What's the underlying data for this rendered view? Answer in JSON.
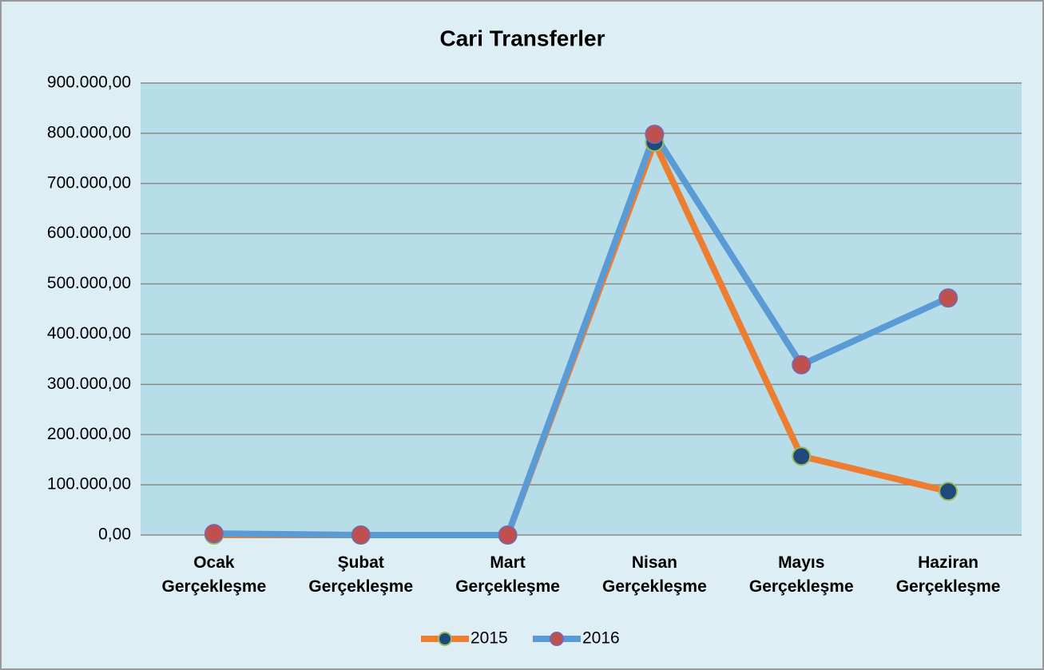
{
  "chart_data": {
    "type": "line",
    "title": "Cari Transferler",
    "categories": [
      "Ocak Gerçekleşme",
      "Şubat Gerçekleşme",
      "Mart Gerçekleşme",
      "Nisan Gerçekleşme",
      "Mayıs Gerçekleşme",
      "Haziran Gerçekleşme"
    ],
    "series": [
      {
        "name": "2015",
        "color": "#ed7d31",
        "marker_color": "#1f497d",
        "marker_edge": "#9bbb59",
        "values": [
          0,
          0,
          0,
          782000,
          157000,
          87000
        ]
      },
      {
        "name": "2016",
        "color": "#5b9bd5",
        "marker_color": "#c0504d",
        "marker_edge": "#8064a2",
        "values": [
          3000,
          0,
          0,
          798000,
          339000,
          472000
        ]
      }
    ],
    "ylim": [
      0,
      900000
    ],
    "yticks": [
      {
        "value": 0,
        "label": "0,00"
      },
      {
        "value": 100000,
        "label": "100.000,00"
      },
      {
        "value": 200000,
        "label": "200.000,00"
      },
      {
        "value": 300000,
        "label": "300.000,00"
      },
      {
        "value": 400000,
        "label": "400.000,00"
      },
      {
        "value": 500000,
        "label": "500.000,00"
      },
      {
        "value": 600000,
        "label": "600.000,00"
      },
      {
        "value": 700000,
        "label": "700.000,00"
      },
      {
        "value": 800000,
        "label": "800.000,00"
      },
      {
        "value": 900000,
        "label": "900.000,00"
      }
    ],
    "grid": true,
    "legend": "bottom"
  }
}
